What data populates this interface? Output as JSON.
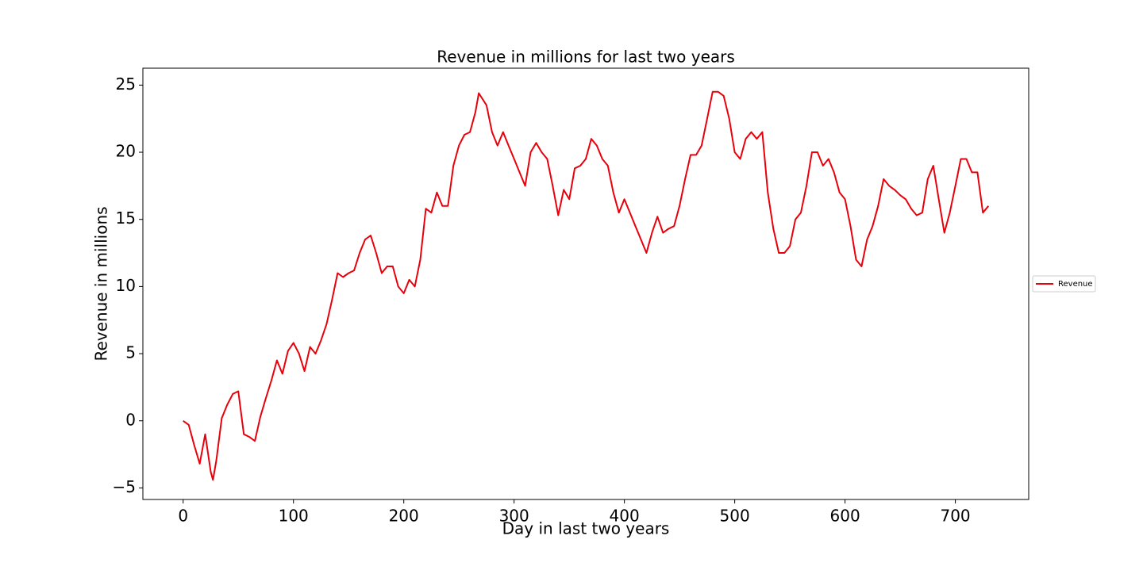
{
  "chart_data": {
    "type": "line",
    "title": "Revenue in millions for last two years",
    "xlabel": "Day in last two years",
    "ylabel": "Revenue in millions",
    "x": [
      0,
      5,
      10,
      15,
      20,
      25,
      27,
      30,
      35,
      40,
      45,
      50,
      55,
      60,
      65,
      70,
      75,
      80,
      85,
      90,
      95,
      100,
      105,
      110,
      115,
      120,
      125,
      130,
      135,
      140,
      145,
      150,
      155,
      160,
      165,
      170,
      175,
      180,
      185,
      190,
      195,
      200,
      205,
      210,
      215,
      220,
      225,
      230,
      235,
      240,
      245,
      250,
      255,
      260,
      265,
      268,
      275,
      280,
      285,
      290,
      295,
      300,
      305,
      310,
      315,
      320,
      325,
      330,
      335,
      340,
      345,
      350,
      355,
      360,
      365,
      370,
      375,
      380,
      385,
      390,
      395,
      400,
      405,
      410,
      415,
      420,
      425,
      430,
      435,
      440,
      445,
      450,
      455,
      460,
      465,
      470,
      475,
      480,
      485,
      490,
      495,
      500,
      505,
      510,
      515,
      520,
      525,
      530,
      535,
      540,
      545,
      550,
      555,
      560,
      565,
      570,
      575,
      580,
      585,
      590,
      595,
      600,
      605,
      610,
      615,
      620,
      625,
      630,
      635,
      640,
      645,
      650,
      655,
      660,
      665,
      670,
      675,
      680,
      685,
      690,
      695,
      700,
      705,
      710,
      715,
      720,
      725,
      730
    ],
    "series": [
      {
        "name": "Revenue",
        "color": "#e8000b",
        "values": [
          0,
          -0.3,
          -1.8,
          -3.2,
          -1.0,
          -3.8,
          -4.4,
          -3.0,
          0.2,
          1.2,
          2.0,
          2.2,
          -1.0,
          -1.2,
          -1.5,
          0.3,
          1.7,
          3.0,
          4.5,
          3.5,
          5.2,
          5.8,
          5.0,
          3.7,
          5.5,
          5.0,
          6.0,
          7.2,
          9.0,
          11.0,
          10.7,
          11.0,
          11.2,
          12.5,
          13.5,
          13.8,
          12.5,
          11.0,
          11.5,
          11.5,
          10.0,
          9.5,
          10.5,
          10.0,
          12.0,
          15.8,
          15.5,
          17.0,
          16.0,
          16.0,
          19.0,
          20.5,
          21.3,
          21.5,
          23.0,
          24.4,
          23.5,
          21.5,
          20.5,
          21.5,
          20.5,
          19.5,
          18.5,
          17.5,
          20.0,
          20.7,
          20.0,
          19.5,
          17.5,
          15.3,
          17.2,
          16.5,
          18.8,
          19.0,
          19.5,
          21.0,
          20.5,
          19.5,
          19.0,
          17.0,
          15.5,
          16.5,
          15.5,
          14.5,
          13.5,
          12.5,
          14.0,
          15.2,
          14.0,
          14.3,
          14.5,
          16.0,
          18.0,
          19.8,
          19.8,
          20.5,
          22.5,
          24.5,
          24.5,
          24.2,
          22.5,
          20.0,
          19.5,
          21.0,
          21.5,
          21.0,
          21.5,
          17.0,
          14.3,
          12.5,
          12.5,
          13.0,
          15.0,
          15.5,
          17.5,
          20.0,
          20.0,
          19.0,
          19.5,
          18.5,
          17.0,
          16.5,
          14.5,
          12.0,
          11.5,
          13.5,
          14.5,
          16.0,
          18.0,
          17.5,
          17.2,
          16.8,
          16.5,
          15.8,
          15.3,
          15.5,
          18.0,
          19.0,
          16.5,
          14.0,
          15.5,
          17.5,
          19.5,
          19.5,
          18.5,
          18.5,
          15.5,
          16.0
        ]
      }
    ],
    "xlim": [
      -36.5,
      766.5
    ],
    "xticks": [
      0,
      100,
      200,
      300,
      400,
      500,
      600,
      700
    ],
    "ylim": [
      -5.86,
      26.26
    ],
    "yticks": [
      {
        "value": -5,
        "label": "−5"
      },
      0,
      5,
      10,
      15,
      20,
      25
    ],
    "legend": "right"
  }
}
